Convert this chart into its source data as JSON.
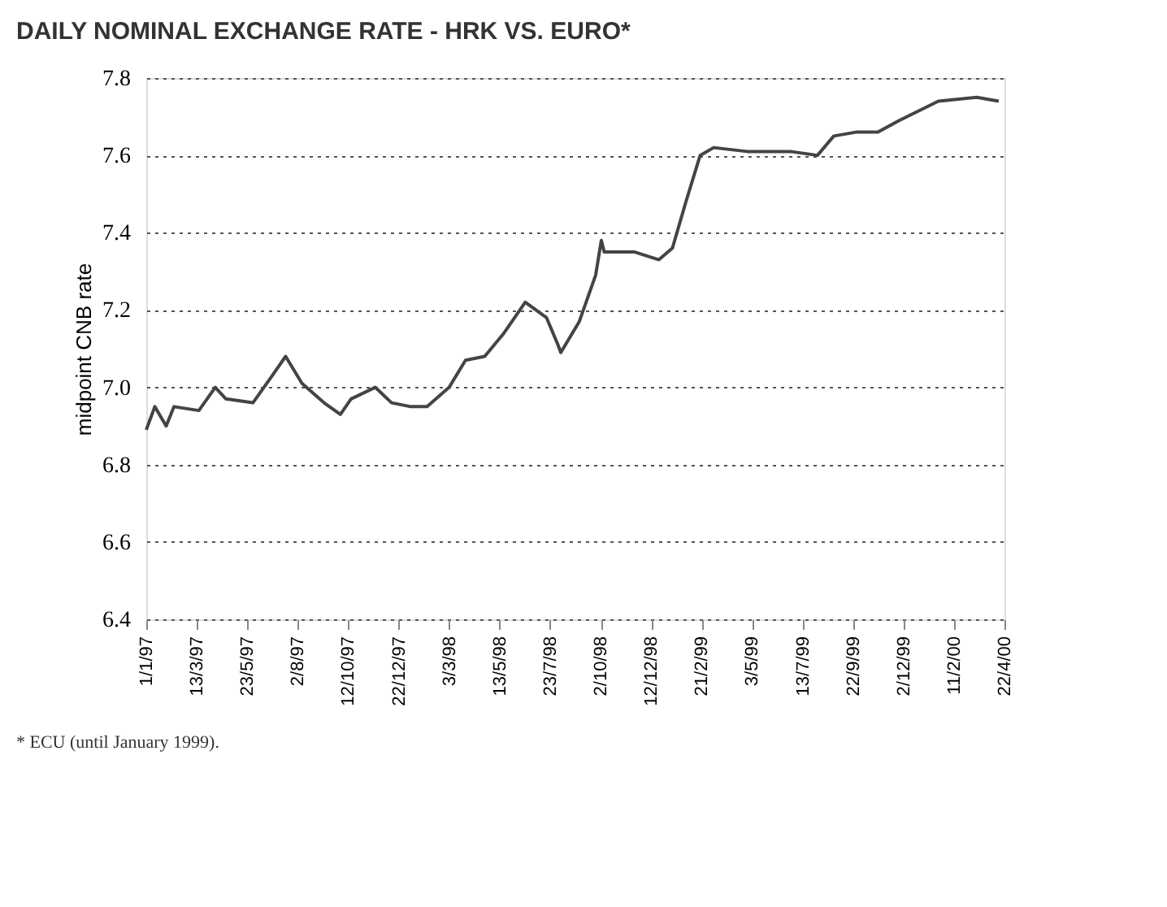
{
  "chart_data": {
    "type": "line",
    "title": "DAILY NOMINAL EXCHANGE RATE - HRK VS. EURO*",
    "ylabel": "midpoint CNB rate",
    "annotations": [
      "* ECU (until January 1999)."
    ],
    "x": [
      "1997-01-01",
      "1997-01-13",
      "1997-01-29",
      "1997-02-09",
      "1997-03-16",
      "1997-04-08",
      "1997-04-23",
      "1997-05-31",
      "1997-06-27",
      "1997-07-16",
      "1997-08-08",
      "1997-09-08",
      "1997-10-01",
      "1997-10-16",
      "1997-11-19",
      "1997-12-12",
      "1998-01-08",
      "1998-01-31",
      "1998-03-03",
      "1998-03-26",
      "1998-04-22",
      "1998-05-19",
      "1998-06-18",
      "1998-07-18",
      "1998-08-03",
      "1998-08-07",
      "1998-09-02",
      "1998-09-25",
      "1998-10-03",
      "1998-10-07",
      "1998-11-19",
      "1998-12-23",
      "1999-01-11",
      "1999-01-30",
      "1999-02-19",
      "1999-03-10",
      "1999-04-26",
      "1999-06-26",
      "1999-08-03",
      "1999-08-26",
      "1999-09-26",
      "1999-10-27",
      "1999-11-26",
      "2000-01-20",
      "2000-03-14",
      "2000-04-14"
    ],
    "series": [
      {
        "color": "#444444",
        "values": [
          6.89,
          6.95,
          6.9,
          6.95,
          6.94,
          7.0,
          6.97,
          6.96,
          7.03,
          7.08,
          7.01,
          6.96,
          6.93,
          6.97,
          7.0,
          6.96,
          6.95,
          6.95,
          7.0,
          7.07,
          7.08,
          7.14,
          7.22,
          7.18,
          7.11,
          7.09,
          7.17,
          7.29,
          7.38,
          7.35,
          7.35,
          7.33,
          7.36,
          7.48,
          7.6,
          7.62,
          7.61,
          7.61,
          7.6,
          7.65,
          7.66,
          7.66,
          7.69,
          7.74,
          7.75,
          7.74
        ]
      }
    ],
    "xlim": [
      "1997-01-01",
      "2000-04-22"
    ],
    "xticks": [
      {
        "value": "1997-01-01",
        "label": "1/1/97"
      },
      {
        "value": "1997-03-13",
        "label": "13/3/97"
      },
      {
        "value": "1997-05-23",
        "label": "23/5/97"
      },
      {
        "value": "1997-08-02",
        "label": "2/8/97"
      },
      {
        "value": "1997-10-12",
        "label": "12/10/97"
      },
      {
        "value": "1997-12-22",
        "label": "22/12/97"
      },
      {
        "value": "1998-03-03",
        "label": "3/3/98"
      },
      {
        "value": "1998-05-13",
        "label": "13/5/98"
      },
      {
        "value": "1998-07-23",
        "label": "23/7/98"
      },
      {
        "value": "1998-10-02",
        "label": "2/10/98"
      },
      {
        "value": "1998-12-12",
        "label": "12/12/98"
      },
      {
        "value": "1999-02-21",
        "label": "21/2/99"
      },
      {
        "value": "1999-05-03",
        "label": "3/5/99"
      },
      {
        "value": "1999-07-13",
        "label": "13/7/99"
      },
      {
        "value": "1999-09-22",
        "label": "22/9/99"
      },
      {
        "value": "1999-12-02",
        "label": "2/12/99"
      },
      {
        "value": "2000-02-11",
        "label": "11/2/00"
      },
      {
        "value": "2000-04-22",
        "label": "22/4/00"
      }
    ],
    "ylim": [
      6.4,
      7.8
    ],
    "yticks": [
      6.4,
      6.6,
      6.8,
      {
        "value": 7,
        "label": "7.0"
      },
      7.2,
      7.4,
      7.6,
      7.8
    ],
    "grid": "y",
    "line_style": "solid",
    "marker": "none"
  }
}
